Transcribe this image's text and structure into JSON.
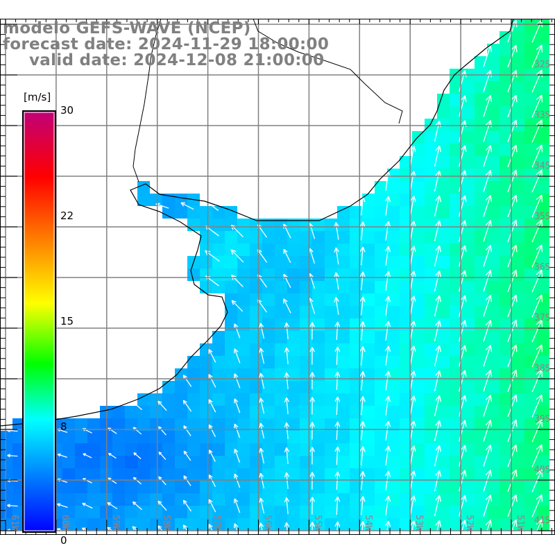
{
  "header": {
    "model_line": "modelo GEFS-WAVE (NCEP)",
    "forecast_line": "forecast date: 2024-11-29 18:00:00",
    "valid_line": "valid date: 2024-12-08 21:00:00"
  },
  "colorbar": {
    "unit": "[m/s]",
    "labels": [
      "30",
      "22",
      "15",
      "8",
      "0"
    ],
    "range": [
      0,
      30
    ],
    "stops": [
      {
        "value": 0,
        "color": "#0000ff"
      },
      {
        "value": 8,
        "color": "#00ffff"
      },
      {
        "value": 12,
        "color": "#00ff00"
      },
      {
        "value": 16.3,
        "color": "#ffff00"
      },
      {
        "value": 25.3,
        "color": "#ff0000"
      },
      {
        "value": 30,
        "color": "#c0007a"
      }
    ]
  },
  "map": {
    "lat_labels": [
      "32S",
      "33S",
      "34S",
      "35S",
      "36S",
      "37S",
      "38S",
      "39S",
      "40S",
      "41S"
    ],
    "lon_labels": [
      "61W",
      "60W",
      "59W",
      "58W",
      "57W",
      "56W",
      "55W",
      "54W",
      "53W",
      "52W",
      "51W"
    ],
    "colors": {
      "land": "#ffffff",
      "coast": "#000000",
      "grid": "#808080",
      "arrow": "#ffffff"
    }
  }
}
